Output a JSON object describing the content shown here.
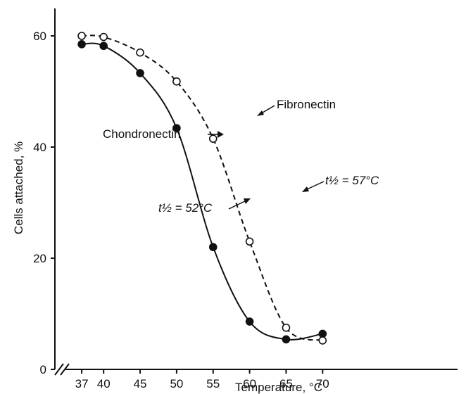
{
  "chart_data": {
    "type": "line",
    "xlabel": "Temperature, °C",
    "ylabel": "Cells attached, %",
    "xlim": [
      35,
      72
    ],
    "ylim": [
      0,
      65
    ],
    "x_ticks": [
      37,
      40,
      45,
      50,
      55,
      60,
      65,
      70
    ],
    "y_ticks": [
      0,
      20,
      40,
      60
    ],
    "axis_break": "x",
    "series": [
      {
        "name": "Chondronectin",
        "marker": "filled-circle",
        "line_style": "solid",
        "x": [
          37,
          40,
          45,
          50,
          55,
          60,
          65,
          70
        ],
        "y": [
          58.5,
          58.2,
          53.3,
          43.4,
          22.0,
          8.6,
          5.4,
          6.4
        ],
        "half_life_label": "t½ = 52°C"
      },
      {
        "name": "Fibronectin",
        "marker": "open-circle",
        "line_style": "dashed",
        "x": [
          37,
          40,
          45,
          50,
          55,
          60,
          65,
          70
        ],
        "y": [
          60.0,
          59.8,
          57.0,
          51.8,
          41.5,
          23.0,
          7.5,
          5.2
        ],
        "half_life_label": "t½ = 57°C"
      }
    ]
  }
}
